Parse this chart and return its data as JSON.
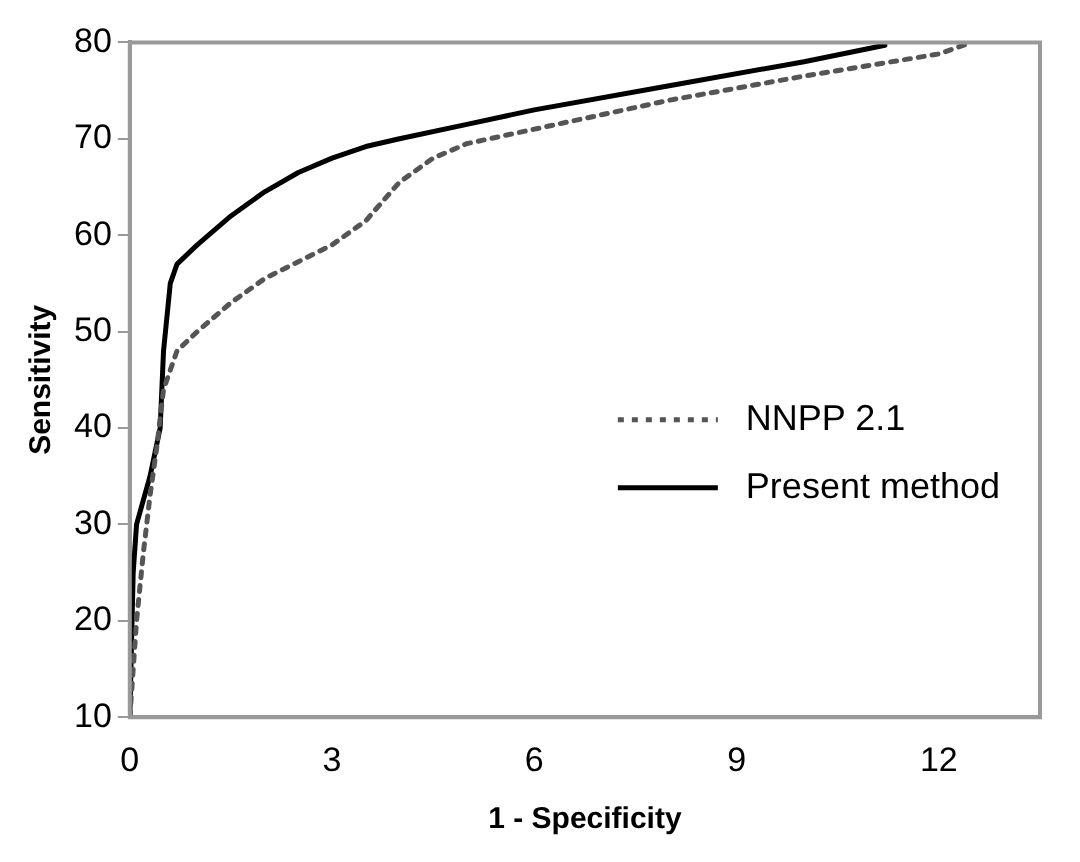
{
  "chart_data": {
    "type": "line",
    "xlabel": "1 - Specificity",
    "ylabel": "Sensitivity",
    "xlim": [
      0,
      13.5
    ],
    "xticks": [
      0,
      3,
      6,
      9,
      12
    ],
    "ylim": [
      10,
      80
    ],
    "yticks": [
      10,
      20,
      30,
      40,
      50,
      60,
      70,
      80
    ],
    "grid": false,
    "legend": "right",
    "marker": "none",
    "series": [
      {
        "name": "NNPP 2.1",
        "color": "#555555",
        "line_style": "dotted",
        "x": [
          0,
          0.1,
          0.2,
          0.3,
          0.4,
          0.5,
          0.7,
          1,
          1.5,
          2,
          3,
          3.5,
          4,
          4.5,
          5,
          6,
          8,
          10,
          12,
          12.4
        ],
        "values": [
          10,
          20,
          27,
          33,
          38,
          44,
          48,
          50,
          53,
          55.5,
          59,
          61.5,
          65.5,
          68,
          69.5,
          71,
          74,
          76.5,
          78.8,
          79.8
        ]
      },
      {
        "name": "Present method",
        "color": "#000000",
        "line_style": "solid",
        "x": [
          0,
          0.05,
          0.1,
          0.3,
          0.45,
          0.5,
          0.6,
          0.7,
          1,
          1.5,
          2,
          2.5,
          3,
          3.5,
          4,
          5,
          6,
          8,
          10,
          11.2
        ],
        "values": [
          10,
          25,
          30,
          35,
          40,
          48,
          55,
          57,
          59,
          62,
          64.5,
          66.5,
          68,
          69.2,
          70,
          71.5,
          73,
          75.5,
          78,
          79.7
        ]
      }
    ]
  }
}
